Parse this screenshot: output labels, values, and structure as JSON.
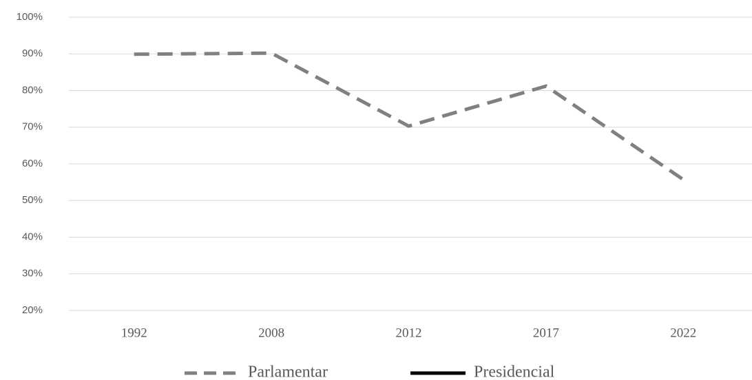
{
  "chart_data": {
    "type": "line",
    "categories": [
      "1992",
      "2008",
      "2012",
      "2017",
      "2022"
    ],
    "series": [
      {
        "name": "Parlamentar",
        "color": "#808080",
        "style": "dashed",
        "values": [
          89.9,
          90.2,
          70.3,
          81.2,
          55.7
        ]
      },
      {
        "name": "Presidencial",
        "color": "#000000",
        "style": "solid",
        "values": [
          null,
          null,
          null,
          null,
          null
        ]
      }
    ],
    "ylim": [
      20,
      100
    ],
    "yticks": [
      {
        "value": 20,
        "label": "20%"
      },
      {
        "value": 30,
        "label": "30%"
      },
      {
        "value": 40,
        "label": "40%"
      },
      {
        "value": 50,
        "label": "50%"
      },
      {
        "value": 60,
        "label": "60%"
      },
      {
        "value": 70,
        "label": "70%"
      },
      {
        "value": 80,
        "label": "80%"
      },
      {
        "value": 90,
        "label": "90%"
      },
      {
        "value": 100,
        "label": "100%"
      }
    ],
    "grid": true,
    "legend": "bottom"
  }
}
